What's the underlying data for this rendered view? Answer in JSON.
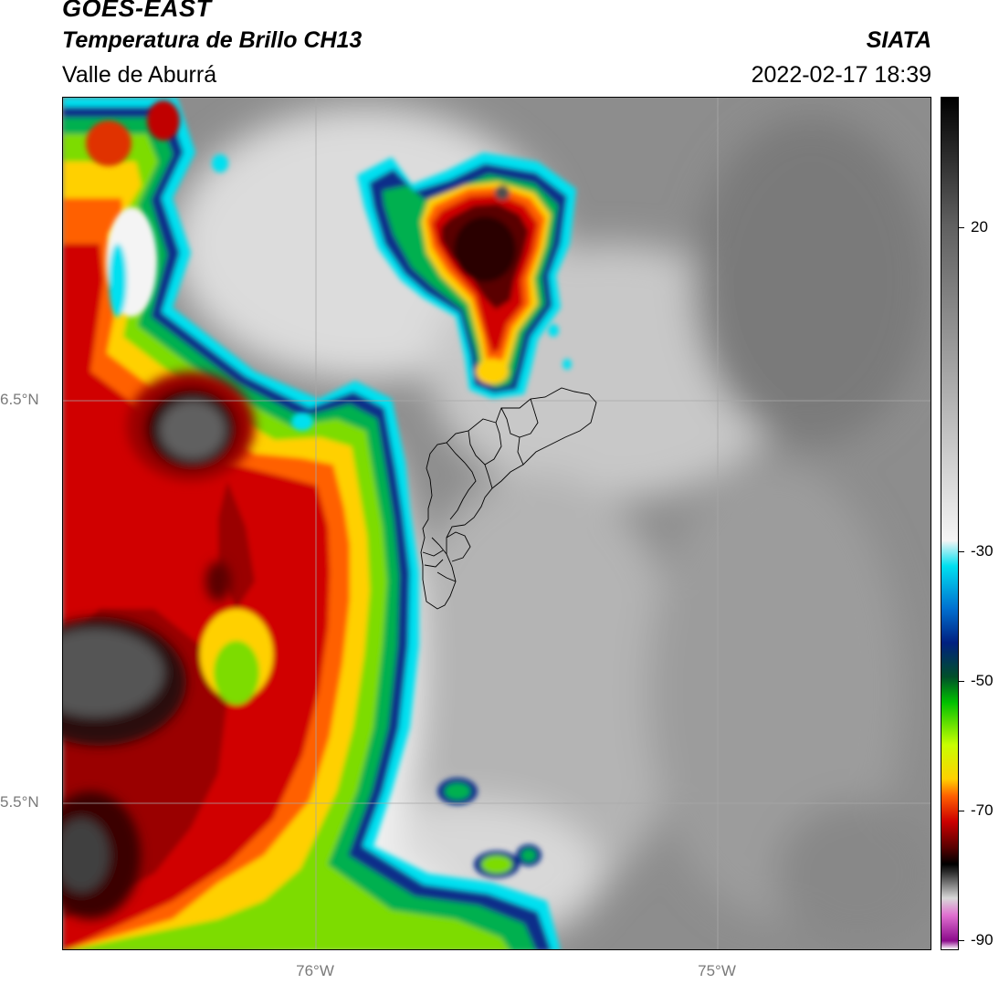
{
  "header": {
    "satellite": "GOES-EAST",
    "product": "Temperatura de Brillo CH13",
    "region": "Valle de Aburrá",
    "organization": "SIATA",
    "datetime": "2022-02-17 18:39"
  },
  "map": {
    "lat_labels": [
      "6.5°N",
      "5.5°N"
    ],
    "lon_labels": [
      "76°W",
      "75°W"
    ],
    "gridlines": true,
    "boundary_overlay": "municipalities-outline"
  },
  "colorbar": {
    "ticks": [
      "20",
      "-30",
      "-50",
      "-70",
      "-90"
    ],
    "palette": [
      "#ffffff",
      "#8b0a8b",
      "#e070d0",
      "#d8d8d8",
      "#303030",
      "#000000",
      "#5a0000",
      "#cc0000",
      "#ff6000",
      "#ffd000",
      "#c8ff00",
      "#00c000",
      "#004f2a",
      "#002080",
      "#0070d0",
      "#00e0f0",
      "#f5f5f5",
      "#b0b0b0",
      "#606060",
      "#000000"
    ]
  }
}
